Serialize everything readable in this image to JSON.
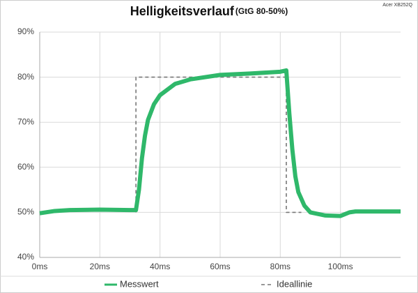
{
  "chart_data": {
    "type": "line",
    "title": "Helligkeitsverlauf",
    "subtitle": "(GtG 80-50%)",
    "note": "Acer XB252Q",
    "xlim": [
      0,
      120
    ],
    "xticks": [
      {
        "value": 0,
        "label": "0ms"
      },
      {
        "value": 20,
        "label": "20ms"
      },
      {
        "value": 40,
        "label": "40ms"
      },
      {
        "value": 60,
        "label": "60ms"
      },
      {
        "value": 80,
        "label": "80ms"
      },
      {
        "value": 100,
        "label": "100ms"
      }
    ],
    "ylim": [
      40,
      90
    ],
    "yticks": [
      {
        "value": 40,
        "label": "40%"
      },
      {
        "value": 50,
        "label": "50%"
      },
      {
        "value": 60,
        "label": "60%"
      },
      {
        "value": 70,
        "label": "70%"
      },
      {
        "value": 80,
        "label": "80%"
      },
      {
        "value": 90,
        "label": "90%"
      }
    ],
    "grid": true,
    "legend": "bottom",
    "series": [
      {
        "name": "Messwert",
        "color": "#2fb86a",
        "dash": false,
        "x": [
          0,
          5,
          10,
          20,
          30,
          32,
          33,
          34,
          35,
          36,
          38,
          40,
          45,
          50,
          60,
          70,
          80,
          82,
          83,
          84,
          85,
          86,
          88,
          90,
          95,
          100,
          103,
          105,
          110,
          120
        ],
        "values": [
          49.8,
          50.3,
          50.5,
          50.6,
          50.5,
          50.5,
          55,
          62,
          67,
          70.5,
          74,
          76,
          78.5,
          79.5,
          80.5,
          80.8,
          81.2,
          81.5,
          72,
          64,
          58,
          54.5,
          51.5,
          50,
          49.3,
          49.2,
          50,
          50.2,
          50.2,
          50.2
        ]
      },
      {
        "name": "Ideallinie",
        "color": "#777777",
        "dash": true,
        "x": [
          32,
          32,
          82,
          82,
          87
        ],
        "values": [
          50,
          80,
          80,
          50,
          50
        ]
      }
    ]
  }
}
